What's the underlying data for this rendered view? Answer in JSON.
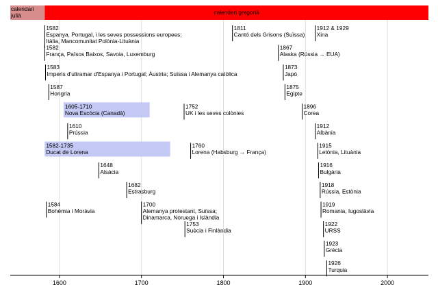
{
  "chart_data": {
    "type": "timeline",
    "x_range": [
      1540,
      2050
    ],
    "x_ticks": [
      1600,
      1700,
      1800,
      1900,
      2000
    ],
    "x_tick_labels": [
      "1600",
      "1700",
      "1800",
      "1900",
      "2000"
    ],
    "periods": [
      {
        "label": "calendari\njulià",
        "start": 1540,
        "end": 1582,
        "color": "#d98c8c"
      },
      {
        "label": "calendari gregorià",
        "start": 1582,
        "end": 2050,
        "color": "#ff0000"
      }
    ],
    "events": [
      {
        "year": 1582,
        "row": 0,
        "label": "1582\nEspanya, Portugal, i les seves possessions europees;\nItàlia, Mancomunitat Polònia-Lituània"
      },
      {
        "year": 1582,
        "row": 1,
        "label": "1582\nFrança, Països Baixos, Savoia, Luxemburg"
      },
      {
        "year": 1583,
        "row": 2,
        "label": "1583\nImperis d'ultramar d'Espanya i Portugal; Àustria; Suïssa i Alemanya catòlica"
      },
      {
        "year": 1587,
        "row": 3,
        "label": "1587\nHongria"
      },
      {
        "year": 1610,
        "row": 5,
        "label": "1610\nPrússia"
      },
      {
        "year": 1648,
        "row": 7,
        "label": "1648\nAlsàcia"
      },
      {
        "year": 1682,
        "row": 8,
        "label": "1682\nEstrasburg"
      },
      {
        "year": 1584,
        "row": 9,
        "label": "1584\nBohèmia i Moràvia"
      },
      {
        "year": 1700,
        "row": 9,
        "label": "1700\nAlemanya protestant, Suïssa;\nDinamarca, Noruega i Islàndia"
      },
      {
        "year": 1752,
        "row": 4,
        "label": "1752\nUK i les seves colònies"
      },
      {
        "year": 1760,
        "row": 6,
        "label": "1760\nLorena (Habsburg → França)"
      },
      {
        "year": 1753,
        "row": 10,
        "label": "1753\nSuècia i Finlàndia"
      },
      {
        "year": 1811,
        "row": 0,
        "label": "1811\nCantó dels Grisons (Suïssa)"
      },
      {
        "year": 1867,
        "row": 1,
        "label": "1867\nAlaska (Rússia → EUA)"
      },
      {
        "year": 1873,
        "row": 2,
        "label": "1873\nJapó"
      },
      {
        "year": 1875,
        "row": 3,
        "label": "1875\nEgipte"
      },
      {
        "year": 1896,
        "row": 4,
        "label": "1896\nCorea"
      },
      {
        "year": 1912,
        "row": 0,
        "label": "1912 & 1929\nXina"
      },
      {
        "year": 1912,
        "row": 5,
        "label": "1912\nAlbània"
      },
      {
        "year": 1915,
        "row": 6,
        "label": "1915\nLetònia, Lituània"
      },
      {
        "year": 1916,
        "row": 7,
        "label": "1916\nBulgària"
      },
      {
        "year": 1918,
        "row": 8,
        "label": "1918\nRússia, Estònia"
      },
      {
        "year": 1919,
        "row": 9,
        "label": "1919\nRomania, Iugoslàvia"
      },
      {
        "year": 1922,
        "row": 10,
        "label": "1922\nURSS"
      },
      {
        "year": 1923,
        "row": 11,
        "label": "1923\nGrècia"
      },
      {
        "year": 1926,
        "row": 12,
        "label": "1926\nTurquia"
      }
    ],
    "ranges": [
      {
        "start": 1605,
        "end": 1710,
        "row": 4,
        "label": "1605-1710\nNova Escòcia (Canadà)",
        "color": "#c4c8f4"
      },
      {
        "start": 1582,
        "end": 1735,
        "row": 6,
        "label": "1582-1735\nDucat de Lorena",
        "color": "#c4c8f4"
      }
    ]
  }
}
